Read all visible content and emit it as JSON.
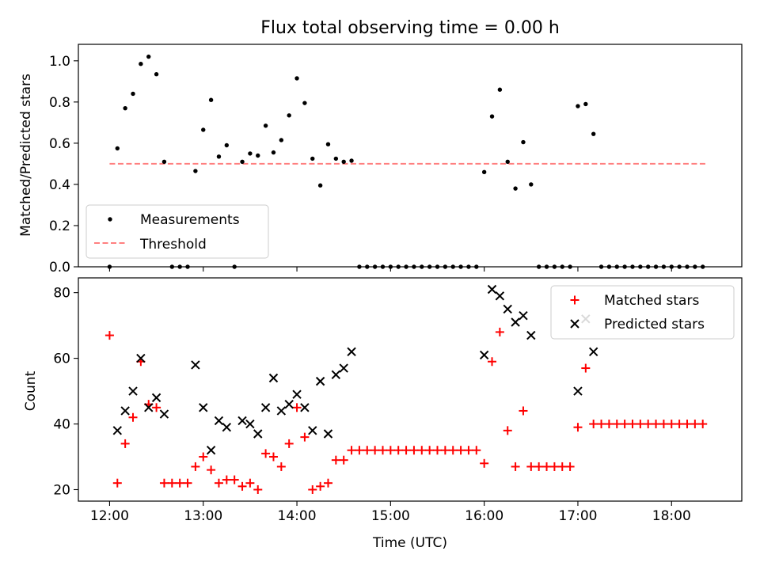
{
  "chart_data": [
    {
      "type": "scatter",
      "title": "Flux total observing time = 0.00 h",
      "ylabel": "Matched/Predicted stars",
      "xlabel": "",
      "xlim": [
        "11:40",
        "18:45"
      ],
      "ylim": [
        0,
        1.08
      ],
      "yticks": [
        0.0,
        0.2,
        0.4,
        0.6,
        0.8,
        1.0
      ],
      "ytick_labels": [
        "0.0",
        "0.2",
        "0.4",
        "0.6",
        "0.8",
        "1.0"
      ],
      "xticks": [
        "12:00",
        "13:00",
        "14:00",
        "15:00",
        "16:00",
        "17:00",
        "18:00"
      ],
      "legend_position": "lower-left",
      "legend": [
        "Measurements",
        "Threshold"
      ],
      "threshold": {
        "name": "Threshold",
        "value": 0.5,
        "x_from": "12:00",
        "x_to": "18:23",
        "color": "#ff8080",
        "style": "dashed"
      },
      "series": [
        {
          "name": "Measurements",
          "color": "#000000",
          "marker": "dot",
          "points": [
            [
              "12:00",
              0.0
            ],
            [
              "12:05",
              0.575
            ],
            [
              "12:10",
              0.77
            ],
            [
              "12:15",
              0.84
            ],
            [
              "12:20",
              0.985
            ],
            [
              "12:25",
              1.02
            ],
            [
              "12:30",
              0.935
            ],
            [
              "12:35",
              0.51
            ],
            [
              "12:40",
              0.0
            ],
            [
              "12:45",
              0.0
            ],
            [
              "12:50",
              0.0
            ],
            [
              "12:55",
              0.465
            ],
            [
              "13:00",
              0.665
            ],
            [
              "13:05",
              0.81
            ],
            [
              "13:10",
              0.535
            ],
            [
              "13:15",
              0.59
            ],
            [
              "13:20",
              0.0
            ],
            [
              "13:25",
              0.51
            ],
            [
              "13:30",
              0.55
            ],
            [
              "13:35",
              0.54
            ],
            [
              "13:40",
              0.685
            ],
            [
              "13:45",
              0.555
            ],
            [
              "13:50",
              0.615
            ],
            [
              "13:55",
              0.735
            ],
            [
              "14:00",
              0.915
            ],
            [
              "14:05",
              0.795
            ],
            [
              "14:10",
              0.525
            ],
            [
              "14:15",
              0.395
            ],
            [
              "14:20",
              0.595
            ],
            [
              "14:25",
              0.525
            ],
            [
              "14:30",
              0.51
            ],
            [
              "14:35",
              0.515
            ],
            [
              "14:40",
              0.0
            ],
            [
              "14:45",
              0.0
            ],
            [
              "14:50",
              0.0
            ],
            [
              "14:55",
              0.0
            ],
            [
              "15:00",
              0.0
            ],
            [
              "15:05",
              0.0
            ],
            [
              "15:10",
              0.0
            ],
            [
              "15:15",
              0.0
            ],
            [
              "15:20",
              0.0
            ],
            [
              "15:25",
              0.0
            ],
            [
              "15:30",
              0.0
            ],
            [
              "15:35",
              0.0
            ],
            [
              "15:40",
              0.0
            ],
            [
              "15:45",
              0.0
            ],
            [
              "15:50",
              0.0
            ],
            [
              "15:55",
              0.0
            ],
            [
              "16:00",
              0.46
            ],
            [
              "16:05",
              0.73
            ],
            [
              "16:10",
              0.86
            ],
            [
              "16:15",
              0.51
            ],
            [
              "16:20",
              0.38
            ],
            [
              "16:25",
              0.605
            ],
            [
              "16:30",
              0.4
            ],
            [
              "16:35",
              0.0
            ],
            [
              "16:40",
              0.0
            ],
            [
              "16:45",
              0.0
            ],
            [
              "16:50",
              0.0
            ],
            [
              "16:55",
              0.0
            ],
            [
              "17:00",
              0.78
            ],
            [
              "17:05",
              0.79
            ],
            [
              "17:10",
              0.645
            ],
            [
              "17:15",
              0.0
            ],
            [
              "17:20",
              0.0
            ],
            [
              "17:25",
              0.0
            ],
            [
              "17:30",
              0.0
            ],
            [
              "17:35",
              0.0
            ],
            [
              "17:40",
              0.0
            ],
            [
              "17:45",
              0.0
            ],
            [
              "17:50",
              0.0
            ],
            [
              "17:55",
              0.0
            ],
            [
              "18:00",
              0.0
            ],
            [
              "18:05",
              0.0
            ],
            [
              "18:10",
              0.0
            ],
            [
              "18:15",
              0.0
            ],
            [
              "18:20",
              0.0
            ]
          ]
        }
      ]
    },
    {
      "type": "scatter",
      "title": "",
      "xlabel": "Time (UTC)",
      "ylabel": "Count",
      "xlim": [
        "11:40",
        "18:45"
      ],
      "ylim": [
        16.5,
        84.5
      ],
      "yticks": [
        20,
        40,
        60,
        80
      ],
      "ytick_labels": [
        "20",
        "40",
        "60",
        "80"
      ],
      "xticks": [
        "12:00",
        "13:00",
        "14:00",
        "15:00",
        "16:00",
        "17:00",
        "18:00"
      ],
      "legend_position": "upper-right",
      "legend": [
        "Matched stars",
        "Predicted stars"
      ],
      "series": [
        {
          "name": "Matched stars",
          "color": "#ff0000",
          "marker": "plus",
          "points": [
            [
              "12:00",
              67
            ],
            [
              "12:05",
              22
            ],
            [
              "12:10",
              34
            ],
            [
              "12:15",
              42
            ],
            [
              "12:20",
              59
            ],
            [
              "12:25",
              46
            ],
            [
              "12:30",
              45
            ],
            [
              "12:35",
              22
            ],
            [
              "12:40",
              22
            ],
            [
              "12:45",
              22
            ],
            [
              "12:50",
              22
            ],
            [
              "12:55",
              27
            ],
            [
              "13:00",
              30
            ],
            [
              "13:05",
              26
            ],
            [
              "13:10",
              22
            ],
            [
              "13:15",
              23
            ],
            [
              "13:20",
              23
            ],
            [
              "13:25",
              21
            ],
            [
              "13:30",
              22
            ],
            [
              "13:35",
              20
            ],
            [
              "13:40",
              31
            ],
            [
              "13:45",
              30
            ],
            [
              "13:50",
              27
            ],
            [
              "13:55",
              34
            ],
            [
              "14:00",
              45
            ],
            [
              "14:05",
              36
            ],
            [
              "14:10",
              20
            ],
            [
              "14:15",
              21
            ],
            [
              "14:20",
              22
            ],
            [
              "14:25",
              29
            ],
            [
              "14:30",
              29
            ],
            [
              "14:35",
              32
            ],
            [
              "14:40",
              32
            ],
            [
              "14:45",
              32
            ],
            [
              "14:50",
              32
            ],
            [
              "14:55",
              32
            ],
            [
              "15:00",
              32
            ],
            [
              "15:05",
              32
            ],
            [
              "15:10",
              32
            ],
            [
              "15:15",
              32
            ],
            [
              "15:20",
              32
            ],
            [
              "15:25",
              32
            ],
            [
              "15:30",
              32
            ],
            [
              "15:35",
              32
            ],
            [
              "15:40",
              32
            ],
            [
              "15:45",
              32
            ],
            [
              "15:50",
              32
            ],
            [
              "15:55",
              32
            ],
            [
              "16:00",
              28
            ],
            [
              "16:05",
              59
            ],
            [
              "16:10",
              68
            ],
            [
              "16:15",
              38
            ],
            [
              "16:20",
              27
            ],
            [
              "16:25",
              44
            ],
            [
              "16:30",
              27
            ],
            [
              "16:35",
              27
            ],
            [
              "16:40",
              27
            ],
            [
              "16:45",
              27
            ],
            [
              "16:50",
              27
            ],
            [
              "16:55",
              27
            ],
            [
              "17:00",
              39
            ],
            [
              "17:05",
              57
            ],
            [
              "17:10",
              40
            ],
            [
              "17:15",
              40
            ],
            [
              "17:20",
              40
            ],
            [
              "17:25",
              40
            ],
            [
              "17:30",
              40
            ],
            [
              "17:35",
              40
            ],
            [
              "17:40",
              40
            ],
            [
              "17:45",
              40
            ],
            [
              "17:50",
              40
            ],
            [
              "17:55",
              40
            ],
            [
              "18:00",
              40
            ],
            [
              "18:05",
              40
            ],
            [
              "18:10",
              40
            ],
            [
              "18:15",
              40
            ],
            [
              "18:20",
              40
            ]
          ]
        },
        {
          "name": "Predicted stars",
          "color": "#000000",
          "marker": "x",
          "points": [
            [
              "12:05",
              38
            ],
            [
              "12:10",
              44
            ],
            [
              "12:15",
              50
            ],
            [
              "12:20",
              60
            ],
            [
              "12:25",
              45
            ],
            [
              "12:30",
              48
            ],
            [
              "12:35",
              43
            ],
            [
              "12:55",
              58
            ],
            [
              "13:00",
              45
            ],
            [
              "13:05",
              32
            ],
            [
              "13:10",
              41
            ],
            [
              "13:15",
              39
            ],
            [
              "13:25",
              41
            ],
            [
              "13:30",
              40
            ],
            [
              "13:35",
              37
            ],
            [
              "13:40",
              45
            ],
            [
              "13:45",
              54
            ],
            [
              "13:50",
              44
            ],
            [
              "13:55",
              46
            ],
            [
              "14:00",
              49
            ],
            [
              "14:05",
              45
            ],
            [
              "14:10",
              38
            ],
            [
              "14:15",
              53
            ],
            [
              "14:20",
              37
            ],
            [
              "14:25",
              55
            ],
            [
              "14:30",
              57
            ],
            [
              "14:35",
              62
            ],
            [
              "16:00",
              61
            ],
            [
              "16:05",
              81
            ],
            [
              "16:10",
              79
            ],
            [
              "16:15",
              75
            ],
            [
              "16:20",
              71
            ],
            [
              "16:25",
              73
            ],
            [
              "16:30",
              67
            ],
            [
              "17:00",
              50
            ],
            [
              "17:05",
              72
            ],
            [
              "17:10",
              62
            ]
          ]
        }
      ]
    }
  ]
}
